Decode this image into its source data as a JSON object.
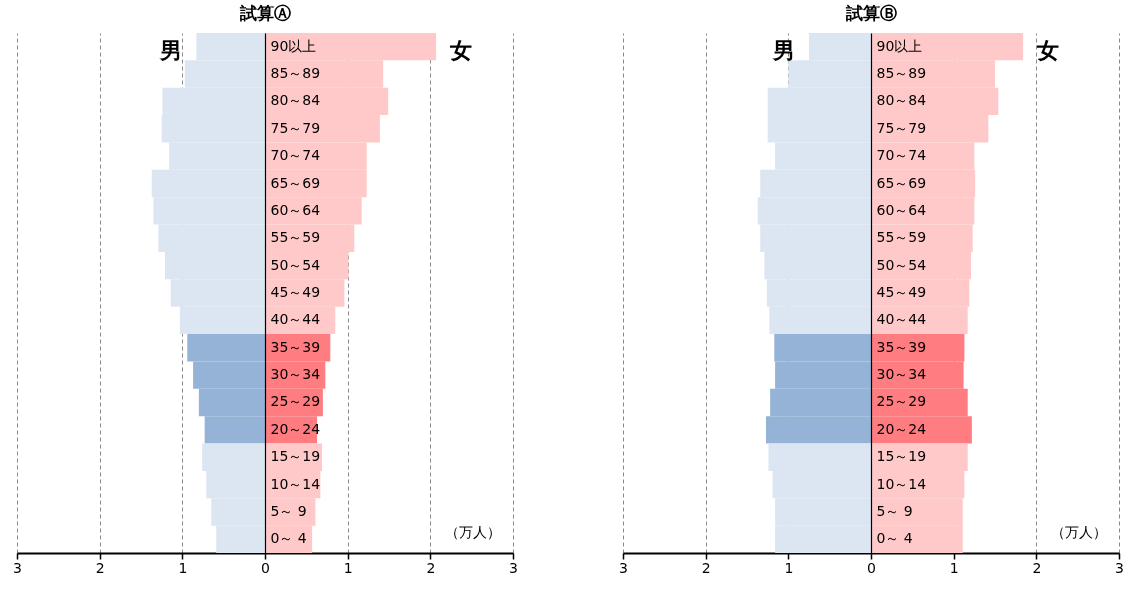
{
  "chart_data": [
    {
      "type": "bar",
      "orientation": "horizontal",
      "stacked": true,
      "title": "試算Ⓐ",
      "annotations": [
        "（万人）"
      ],
      "grid": "x",
      "categories": [
        "90以上",
        "85～89",
        "80～84",
        "75～79",
        "70～74",
        "65～69",
        "60～64",
        "55～59",
        "50～54",
        "45～49",
        "40～44",
        "35～39",
        "30～34",
        "25～29",
        "20～24",
        "15～19",
        "10～14",
        "5～ 9",
        "0～ 4"
      ],
      "xlim": [
        -3,
        3
      ],
      "xticks": [
        {
          "value": -3,
          "label": "3"
        },
        {
          "value": -2,
          "label": "2"
        },
        {
          "value": -1,
          "label": "1"
        },
        0,
        1,
        2,
        3
      ],
      "series": [
        {
          "name": "男",
          "values": [
            -0.83,
            -0.97,
            -1.24,
            -1.25,
            -1.16,
            -1.37,
            -1.35,
            -1.29,
            -1.21,
            -1.14,
            -1.03,
            -0.94,
            -0.87,
            -0.8,
            -0.73,
            -0.76,
            -0.71,
            -0.65,
            -0.59
          ],
          "colors": [
            "#dce6f2",
            "#dce6f2",
            "#dce6f2",
            "#dce6f2",
            "#dce6f2",
            "#dce6f2",
            "#dce6f2",
            "#dce6f2",
            "#dce6f2",
            "#dce6f2",
            "#dce6f2",
            "#95b3d7",
            "#95b3d7",
            "#95b3d7",
            "#95b3d7",
            "#dce6f2",
            "#dce6f2",
            "#dce6f2",
            "#dce6f2"
          ]
        },
        {
          "name": "女",
          "values": [
            2.07,
            1.43,
            1.49,
            1.39,
            1.23,
            1.23,
            1.17,
            1.08,
            1.01,
            0.96,
            0.85,
            0.79,
            0.73,
            0.7,
            0.63,
            0.69,
            0.67,
            0.61,
            0.57
          ],
          "colors": [
            "#ffc9c9",
            "#ffc9c9",
            "#ffc9c9",
            "#ffc9c9",
            "#ffc9c9",
            "#ffc9c9",
            "#ffc9c9",
            "#ffc9c9",
            "#ffc9c9",
            "#ffc9c9",
            "#ffc9c9",
            "#ff7c80",
            "#ff7c80",
            "#ff7c80",
            "#ff7c80",
            "#ffc9c9",
            "#ffc9c9",
            "#ffc9c9",
            "#ffc9c9"
          ]
        }
      ]
    },
    {
      "type": "bar",
      "orientation": "horizontal",
      "stacked": true,
      "title": "試算Ⓑ",
      "annotations": [
        "（万人）"
      ],
      "grid": "x",
      "categories": [
        "90以上",
        "85～89",
        "80～84",
        "75～79",
        "70～74",
        "65～69",
        "60～64",
        "55～59",
        "50～54",
        "45～49",
        "40～44",
        "35～39",
        "30～34",
        "25～29",
        "20～24",
        "15～19",
        "10～14",
        "5～ 9",
        "0～ 4"
      ],
      "xlim": [
        -3,
        3
      ],
      "xticks": [
        {
          "value": -3,
          "label": "3"
        },
        {
          "value": -2,
          "label": "2"
        },
        {
          "value": -1,
          "label": "1"
        },
        0,
        1,
        2,
        3
      ],
      "series": [
        {
          "name": "男",
          "values": [
            -0.75,
            -1.0,
            -1.25,
            -1.25,
            -1.16,
            -1.34,
            -1.37,
            -1.34,
            -1.29,
            -1.26,
            -1.23,
            -1.17,
            -1.16,
            -1.22,
            -1.27,
            -1.24,
            -1.19,
            -1.16,
            -1.16
          ],
          "colors": [
            "#dce6f2",
            "#dce6f2",
            "#dce6f2",
            "#dce6f2",
            "#dce6f2",
            "#dce6f2",
            "#dce6f2",
            "#dce6f2",
            "#dce6f2",
            "#dce6f2",
            "#dce6f2",
            "#95b3d7",
            "#95b3d7",
            "#95b3d7",
            "#95b3d7",
            "#dce6f2",
            "#dce6f2",
            "#dce6f2",
            "#dce6f2"
          ]
        },
        {
          "name": "女",
          "values": [
            1.84,
            1.5,
            1.54,
            1.42,
            1.25,
            1.26,
            1.25,
            1.23,
            1.21,
            1.19,
            1.17,
            1.13,
            1.12,
            1.17,
            1.22,
            1.17,
            1.13,
            1.11,
            1.11
          ],
          "colors": [
            "#ffc9c9",
            "#ffc9c9",
            "#ffc9c9",
            "#ffc9c9",
            "#ffc9c9",
            "#ffc9c9",
            "#ffc9c9",
            "#ffc9c9",
            "#ffc9c9",
            "#ffc9c9",
            "#ffc9c9",
            "#ff7c80",
            "#ff7c80",
            "#ff7c80",
            "#ff7c80",
            "#ffc9c9",
            "#ffc9c9",
            "#ffc9c9",
            "#ffc9c9"
          ]
        }
      ]
    }
  ]
}
